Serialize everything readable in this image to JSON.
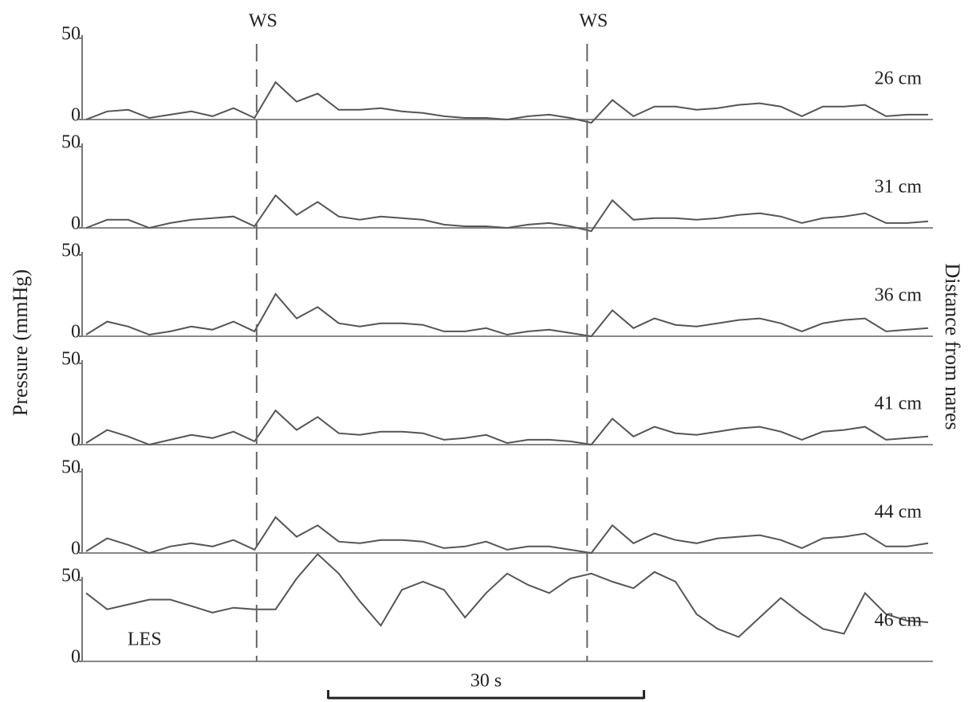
{
  "y_label": "Pressure (mmHg)",
  "right_label": "Distance from nares",
  "xlim": [
    0,
    80
  ],
  "markers": [
    {
      "label": "WS",
      "x": 16.2
    },
    {
      "label": "WS",
      "x": 47.6
    }
  ],
  "scale_bar": {
    "label": "30 s",
    "x": 23,
    "length": 30
  },
  "chart_data": [
    {
      "type": "line",
      "label": "26 cm",
      "color": "#555555",
      "ylim": [
        0,
        50
      ],
      "yticks": [
        0,
        50
      ],
      "x": [
        0,
        2,
        4,
        6,
        8,
        10,
        12,
        14,
        16,
        18,
        20,
        22,
        24,
        26,
        28,
        30,
        32,
        34,
        36,
        38,
        40,
        42,
        44,
        46,
        48,
        50,
        52,
        54,
        56,
        58,
        60,
        62,
        64,
        66,
        68,
        70,
        72,
        74,
        76,
        78,
        80
      ],
      "values": [
        0,
        5,
        6,
        1,
        3,
        5,
        2,
        7,
        1,
        23,
        11,
        16,
        6,
        6,
        7,
        5,
        4,
        2,
        1,
        1,
        0,
        2,
        3,
        1,
        -2,
        12,
        2,
        8,
        8,
        6,
        7,
        9,
        10,
        8,
        2,
        8,
        8,
        9,
        2,
        3,
        3
      ]
    },
    {
      "type": "line",
      "label": "31 cm",
      "color": "#555555",
      "ylim": [
        0,
        50
      ],
      "yticks": [
        0,
        50
      ],
      "x": [
        0,
        2,
        4,
        6,
        8,
        10,
        12,
        14,
        16,
        18,
        20,
        22,
        24,
        26,
        28,
        30,
        32,
        34,
        36,
        38,
        40,
        42,
        44,
        46,
        48,
        50,
        52,
        54,
        56,
        58,
        60,
        62,
        64,
        66,
        68,
        70,
        72,
        74,
        76,
        78,
        80
      ],
      "values": [
        0,
        5,
        5,
        0,
        3,
        5,
        6,
        7,
        1,
        20,
        8,
        16,
        7,
        5,
        7,
        6,
        5,
        2,
        1,
        1,
        0,
        2,
        3,
        1,
        -2,
        17,
        5,
        6,
        6,
        5,
        6,
        8,
        9,
        7,
        3,
        6,
        7,
        9,
        3,
        3,
        4
      ]
    },
    {
      "type": "line",
      "label": "36 cm",
      "color": "#555555",
      "ylim": [
        0,
        50
      ],
      "yticks": [
        0,
        50
      ],
      "x": [
        0,
        2,
        4,
        6,
        8,
        10,
        12,
        14,
        16,
        18,
        20,
        22,
        24,
        26,
        28,
        30,
        32,
        34,
        36,
        38,
        40,
        42,
        44,
        46,
        48,
        50,
        52,
        54,
        56,
        58,
        60,
        62,
        64,
        66,
        68,
        70,
        72,
        74,
        76,
        78,
        80
      ],
      "values": [
        1,
        9,
        6,
        1,
        3,
        6,
        4,
        9,
        3,
        26,
        11,
        18,
        8,
        6,
        8,
        8,
        7,
        3,
        3,
        5,
        1,
        3,
        4,
        2,
        0,
        16,
        5,
        11,
        7,
        6,
        8,
        10,
        11,
        8,
        3,
        8,
        10,
        11,
        3,
        4,
        5
      ]
    },
    {
      "type": "line",
      "label": "41 cm",
      "color": "#555555",
      "ylim": [
        0,
        50
      ],
      "yticks": [
        0,
        50
      ],
      "x": [
        0,
        2,
        4,
        6,
        8,
        10,
        12,
        14,
        16,
        18,
        20,
        22,
        24,
        26,
        28,
        30,
        32,
        34,
        36,
        38,
        40,
        42,
        44,
        46,
        48,
        50,
        52,
        54,
        56,
        58,
        60,
        62,
        64,
        66,
        68,
        70,
        72,
        74,
        76,
        78,
        80
      ],
      "values": [
        1,
        9,
        5,
        0,
        3,
        6,
        4,
        8,
        2,
        21,
        9,
        17,
        7,
        6,
        8,
        8,
        7,
        3,
        4,
        6,
        1,
        3,
        3,
        2,
        0,
        16,
        5,
        11,
        7,
        6,
        8,
        10,
        11,
        8,
        3,
        8,
        9,
        11,
        3,
        4,
        5
      ]
    },
    {
      "type": "line",
      "label": "44 cm",
      "color": "#555555",
      "ylim": [
        0,
        50
      ],
      "yticks": [
        0,
        50
      ],
      "x": [
        0,
        2,
        4,
        6,
        8,
        10,
        12,
        14,
        16,
        18,
        20,
        22,
        24,
        26,
        28,
        30,
        32,
        34,
        36,
        38,
        40,
        42,
        44,
        46,
        48,
        50,
        52,
        54,
        56,
        58,
        60,
        62,
        64,
        66,
        68,
        70,
        72,
        74,
        76,
        78,
        80
      ],
      "values": [
        1,
        9,
        5,
        0,
        4,
        6,
        4,
        8,
        2,
        22,
        10,
        17,
        7,
        6,
        8,
        8,
        7,
        3,
        4,
        7,
        2,
        4,
        4,
        2,
        0,
        17,
        6,
        12,
        8,
        6,
        9,
        10,
        11,
        8,
        3,
        9,
        10,
        12,
        4,
        4,
        6
      ]
    },
    {
      "type": "line",
      "label": "46 cm",
      "annotation": "LES",
      "color": "#555555",
      "ylim": [
        0,
        50
      ],
      "yticks": [
        0,
        50
      ],
      "x": [
        0,
        2,
        4,
        6,
        8,
        10,
        12,
        14,
        16,
        18,
        20,
        22,
        24,
        26,
        28,
        30,
        32,
        34,
        36,
        38,
        40,
        42,
        44,
        46,
        48,
        50,
        52,
        54,
        56,
        58,
        60,
        62,
        64,
        66,
        68,
        70,
        72,
        74,
        76,
        78,
        80
      ],
      "values": [
        42,
        32,
        35,
        38,
        38,
        34,
        30,
        33,
        32,
        32,
        51,
        66,
        54,
        37,
        22,
        44,
        49,
        44,
        27,
        42,
        54,
        47,
        42,
        51,
        54,
        49,
        45,
        55,
        49,
        29,
        20,
        15,
        27,
        39,
        29,
        20,
        17,
        42,
        29,
        25,
        24
      ]
    }
  ]
}
